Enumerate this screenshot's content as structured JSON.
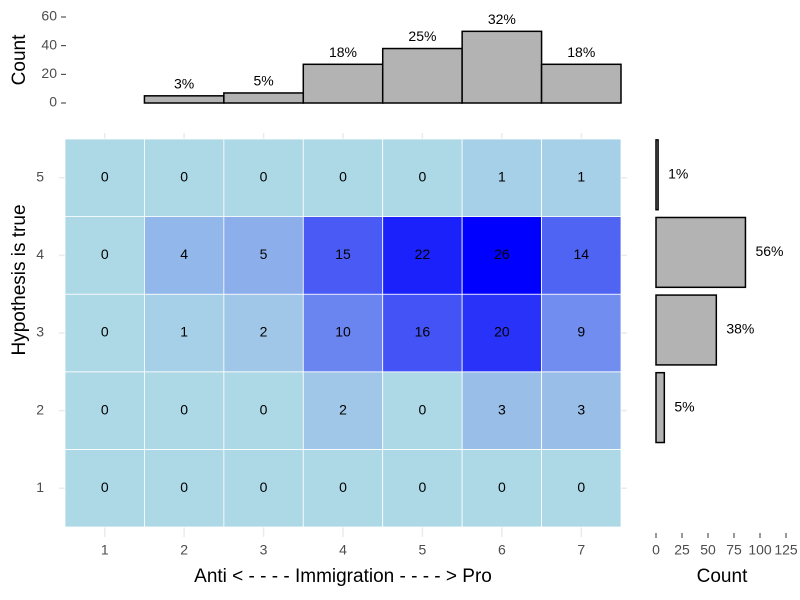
{
  "chart_data": [
    {
      "type": "heatmap",
      "xlabel": "Anti   < - - - - Immigration - - - - >   Pro",
      "ylabel": "Hypothesis is true",
      "x_categories": [
        1,
        2,
        3,
        4,
        5,
        6,
        7
      ],
      "y_categories": [
        1,
        2,
        3,
        4,
        5
      ],
      "z": [
        [
          0,
          0,
          0,
          0,
          0,
          0,
          0
        ],
        [
          0,
          0,
          0,
          2,
          0,
          3,
          3
        ],
        [
          0,
          1,
          2,
          10,
          16,
          20,
          9
        ],
        [
          0,
          4,
          5,
          15,
          22,
          26,
          14
        ],
        [
          0,
          0,
          0,
          0,
          0,
          1,
          1
        ]
      ],
      "color_low": "#add8e6",
      "color_high": "#0000ff",
      "grid": true
    },
    {
      "type": "bar",
      "ylabel": "Count",
      "values": [
        0,
        5,
        7,
        27,
        38,
        50,
        27
      ],
      "labels": [
        null,
        "3%",
        "5%",
        "18%",
        "25%",
        "32%",
        "18%"
      ],
      "ylim": [
        0,
        60
      ],
      "yticks": [
        0,
        20,
        40,
        60
      ],
      "color": "#b3b3b3"
    },
    {
      "type": "barh",
      "xlabel": "Count",
      "values": [
        0,
        8,
        58,
        86,
        2
      ],
      "labels": [
        null,
        "5%",
        "38%",
        "56%",
        "1%"
      ],
      "xlim": [
        0,
        125
      ],
      "xticks": [
        0,
        25,
        50,
        75,
        100,
        125
      ],
      "color": "#b3b3b3"
    }
  ]
}
